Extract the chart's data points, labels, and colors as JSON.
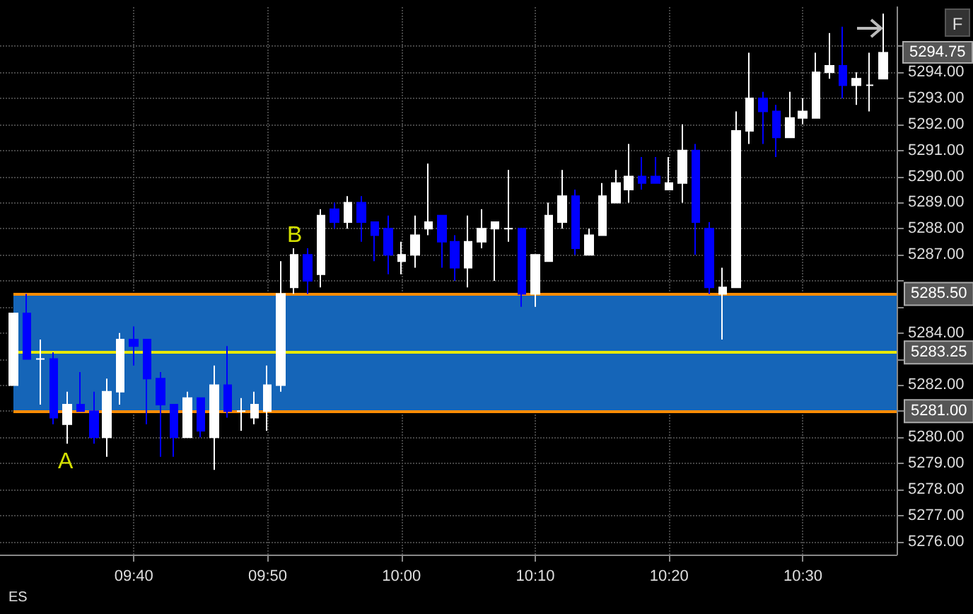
{
  "chart_data": {
    "type": "candlestick",
    "x": [
      9.5167,
      9.5333,
      9.55,
      9.5667,
      9.5833,
      9.6,
      9.6167,
      9.6333,
      9.65,
      9.6667,
      9.6833,
      9.7,
      9.7167,
      9.7333,
      9.75,
      9.7667,
      9.7833,
      9.8,
      9.8167,
      9.8333,
      9.85,
      9.8667,
      9.8833,
      9.9,
      9.9167,
      9.9333,
      9.95,
      9.9667,
      9.9833,
      10,
      10.0167,
      10.0333,
      10.05,
      10.0667,
      10.0833,
      10.1,
      10.1167,
      10.1333,
      10.15,
      10.1667,
      10.1833,
      10.2,
      10.2167,
      10.2333,
      10.25,
      10.2667,
      10.2833,
      10.3,
      10.3167,
      10.3333,
      10.35,
      10.3667,
      10.3833,
      10.4,
      10.4167,
      10.4333,
      10.45,
      10.4667,
      10.4833,
      10.5,
      10.5167,
      10.5333,
      10.55,
      10.5667,
      10.5833,
      10.6
    ],
    "ohlc": [
      [
        5282.0,
        5284.75,
        5282.0,
        5284.75
      ],
      [
        5284.75,
        5285.5,
        5283.0,
        5283.0
      ],
      [
        5283.0,
        5283.75,
        5281.25,
        5283.0
      ],
      [
        5283.0,
        5283.25,
        5280.5,
        5280.75
      ],
      [
        5280.5,
        5281.75,
        5279.75,
        5281.25
      ],
      [
        5281.25,
        5282.5,
        5281.0,
        5281.0
      ],
      [
        5281.0,
        5281.75,
        5279.75,
        5280.0
      ],
      [
        5280.0,
        5282.25,
        5279.25,
        5281.75
      ],
      [
        5281.75,
        5284.0,
        5281.25,
        5283.75
      ],
      [
        5283.75,
        5284.25,
        5282.75,
        5283.5
      ],
      [
        5283.75,
        5283.75,
        5280.5,
        5282.25
      ],
      [
        5282.25,
        5282.5,
        5279.25,
        5281.25
      ],
      [
        5281.25,
        5281.25,
        5279.25,
        5280.0
      ],
      [
        5280.0,
        5281.75,
        5280.0,
        5281.5
      ],
      [
        5281.5,
        5281.5,
        5280.0,
        5280.25
      ],
      [
        5280.0,
        5282.75,
        5278.75,
        5282.0
      ],
      [
        5282.0,
        5283.5,
        5280.75,
        5281.0
      ],
      [
        5281.0,
        5281.5,
        5280.25,
        5281.0
      ],
      [
        5280.75,
        5281.75,
        5280.5,
        5281.25
      ],
      [
        5281.0,
        5282.75,
        5280.25,
        5282.0
      ],
      [
        5282.0,
        5286.75,
        5281.75,
        5285.5
      ],
      [
        5285.75,
        5287.25,
        5285.5,
        5287.0
      ],
      [
        5287.0,
        5287.25,
        5285.5,
        5286.0
      ],
      [
        5286.25,
        5288.75,
        5285.75,
        5288.5
      ],
      [
        5288.75,
        5289.0,
        5288.0,
        5288.25
      ],
      [
        5288.25,
        5289.25,
        5288.0,
        5289.0
      ],
      [
        5289.0,
        5289.25,
        5287.5,
        5288.25
      ],
      [
        5288.25,
        5288.25,
        5286.75,
        5287.75
      ],
      [
        5288.0,
        5288.5,
        5286.25,
        5287.0
      ],
      [
        5286.75,
        5287.5,
        5286.25,
        5287.0
      ],
      [
        5287.0,
        5288.5,
        5286.5,
        5287.75
      ],
      [
        5288.0,
        5290.5,
        5287.75,
        5288.25
      ],
      [
        5288.5,
        5288.5,
        5286.5,
        5287.5
      ],
      [
        5287.5,
        5287.75,
        5286.0,
        5286.5
      ],
      [
        5286.5,
        5288.5,
        5285.75,
        5287.5
      ],
      [
        5287.5,
        5288.75,
        5287.25,
        5288.0
      ],
      [
        5288.0,
        5288.25,
        5286.0,
        5288.25
      ],
      [
        5288.0,
        5290.25,
        5287.5,
        5288.0
      ],
      [
        5288.0,
        5288.0,
        5285.0,
        5285.5
      ],
      [
        5285.5,
        5287.0,
        5285.0,
        5287.0
      ],
      [
        5286.75,
        5289.0,
        5286.75,
        5288.5
      ],
      [
        5288.25,
        5290.25,
        5288.0,
        5289.25
      ],
      [
        5289.25,
        5289.5,
        5287.0,
        5287.25
      ],
      [
        5287.0,
        5288.0,
        5287.0,
        5287.75
      ],
      [
        5287.75,
        5289.75,
        5287.75,
        5289.25
      ],
      [
        5289.0,
        5290.25,
        5289.0,
        5289.75
      ],
      [
        5289.5,
        5291.25,
        5289.0,
        5290.0
      ],
      [
        5290.0,
        5290.75,
        5289.5,
        5289.75
      ],
      [
        5290.0,
        5290.75,
        5289.75,
        5289.75
      ],
      [
        5289.5,
        5290.75,
        5289.5,
        5289.75
      ],
      [
        5289.75,
        5292.0,
        5289.0,
        5291.0
      ],
      [
        5291.0,
        5291.25,
        5287.0,
        5288.25
      ],
      [
        5288.0,
        5288.25,
        5285.5,
        5285.75
      ],
      [
        5285.5,
        5286.5,
        5283.75,
        5285.75
      ],
      [
        5285.75,
        5292.5,
        5285.75,
        5291.75
      ],
      [
        5291.75,
        5294.75,
        5291.25,
        5293.0
      ],
      [
        5293.0,
        5293.25,
        5291.25,
        5292.5
      ],
      [
        5292.5,
        5292.75,
        5290.75,
        5291.5
      ],
      [
        5291.5,
        5293.25,
        5291.5,
        5292.25
      ],
      [
        5292.25,
        5293.0,
        5292.0,
        5292.5
      ],
      [
        5292.25,
        5294.75,
        5292.25,
        5294.0
      ],
      [
        5294.0,
        5295.5,
        5293.75,
        5294.25
      ],
      [
        5294.25,
        5295.75,
        5293.0,
        5293.5
      ],
      [
        5293.5,
        5294.0,
        5292.75,
        5293.75
      ],
      [
        5293.5,
        5294.75,
        5292.5,
        5293.5
      ],
      [
        5293.75,
        5296.25,
        5293.75,
        5294.75
      ]
    ],
    "colors": [
      "#ffffff",
      "#0000ff",
      "#ffffff",
      "#0000ff",
      "#ffffff",
      "#0000ff",
      "#0000ff",
      "#ffffff",
      "#ffffff",
      "#0000ff",
      "#0000ff",
      "#0000ff",
      "#0000ff",
      "#ffffff",
      "#0000ff",
      "#ffffff",
      "#0000ff",
      "#ffffff",
      "#ffffff",
      "#ffffff",
      "#ffffff",
      "#ffffff",
      "#0000ff",
      "#ffffff",
      "#0000ff",
      "#ffffff",
      "#0000ff",
      "#0000ff",
      "#0000ff",
      "#ffffff",
      "#ffffff",
      "#ffffff",
      "#0000ff",
      "#0000ff",
      "#ffffff",
      "#ffffff",
      "#ffffff",
      "#ffffff",
      "#0000ff",
      "#ffffff",
      "#ffffff",
      "#ffffff",
      "#0000ff",
      "#ffffff",
      "#ffffff",
      "#ffffff",
      "#ffffff",
      "#0000ff",
      "#0000ff",
      "#ffffff",
      "#ffffff",
      "#0000ff",
      "#0000ff",
      "#ffffff",
      "#ffffff",
      "#ffffff",
      "#0000ff",
      "#0000ff",
      "#ffffff",
      "#ffffff",
      "#ffffff",
      "#ffffff",
      "#0000ff",
      "#ffffff",
      "#ffffff",
      "#ffffff"
    ],
    "xlim": [
      9.5,
      10.6167
    ],
    "xticks": [
      {
        "value": 9.6667,
        "label": "09:40"
      },
      {
        "value": 9.8333,
        "label": "09:50"
      },
      {
        "value": 10,
        "label": "10:00"
      },
      {
        "value": 10.1667,
        "label": "10:10"
      },
      {
        "value": 10.3333,
        "label": "10:20"
      },
      {
        "value": 10.5,
        "label": "10:30"
      }
    ],
    "ylim": [
      5275.5,
      5296.5
    ],
    "yticks": [
      {
        "value": 5276,
        "label": "5276.00"
      },
      {
        "value": 5277,
        "label": "5277.00"
      },
      {
        "value": 5278,
        "label": "5278.00"
      },
      {
        "value": 5279,
        "label": "5279.00"
      },
      {
        "value": 5280,
        "label": "5280.00"
      },
      {
        "value": 5281,
        "label": null
      },
      {
        "value": 5282,
        "label": "5282.00"
      },
      {
        "value": 5283,
        "label": null
      },
      {
        "value": 5284,
        "label": "5284.00"
      },
      {
        "value": 5285,
        "label": null
      },
      {
        "value": 5286,
        "label": null
      },
      {
        "value": 5287,
        "label": "5287.00"
      },
      {
        "value": 5288,
        "label": "5288.00"
      },
      {
        "value": 5289,
        "label": "5289.00"
      },
      {
        "value": 5290,
        "label": "5290.00"
      },
      {
        "value": 5291,
        "label": "5291.00"
      },
      {
        "value": 5292,
        "label": "5292.00"
      },
      {
        "value": 5293,
        "label": "5293.00"
      },
      {
        "value": 5294,
        "label": "5294.00"
      },
      {
        "value": 5295,
        "label": null
      }
    ],
    "grid": true,
    "bands": [
      {
        "axis": "y",
        "from": 5281.0,
        "to": 5285.5,
        "color": "#1565b8"
      }
    ],
    "ref_lines": [
      {
        "axis": "y",
        "value": 5285.5,
        "label": "5285.50",
        "color": "#ff8c00"
      },
      {
        "axis": "y",
        "value": 5283.25,
        "label": "5283.25",
        "color": "#e8e800"
      },
      {
        "axis": "y",
        "value": 5281.0,
        "label": "5281.00",
        "color": "#ff8c00"
      }
    ],
    "annotations": [
      "ES",
      "F",
      "A",
      "B",
      "5294.75"
    ]
  }
}
